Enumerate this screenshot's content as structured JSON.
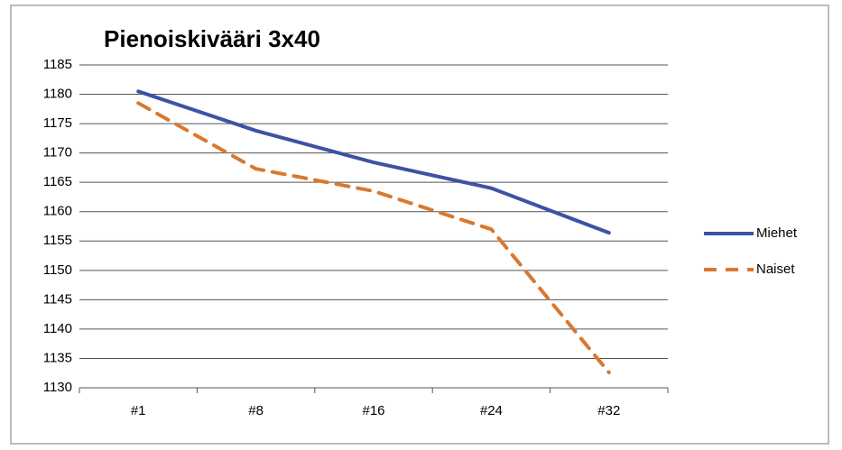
{
  "chart_data": {
    "type": "line",
    "title": "Pienoiskivääri 3x40",
    "categories": [
      "#1",
      "#8",
      "#16",
      "#24",
      "#32"
    ],
    "series": [
      {
        "name": "Miehet",
        "color": "#3f51a3",
        "dashed": false,
        "values": [
          1180.5,
          1173.8,
          1168.4,
          1164,
          1156.4
        ]
      },
      {
        "name": "Naiset",
        "color": "#d9782f",
        "dashed": true,
        "values": [
          1178.5,
          1167.3,
          1163.5,
          1157,
          1132.6
        ]
      }
    ],
    "ylim": [
      1130,
      1185
    ],
    "yticks": [
      1130,
      1135,
      1140,
      1145,
      1150,
      1155,
      1160,
      1165,
      1170,
      1175,
      1180,
      1185
    ],
    "grid": true,
    "legend": "right"
  }
}
